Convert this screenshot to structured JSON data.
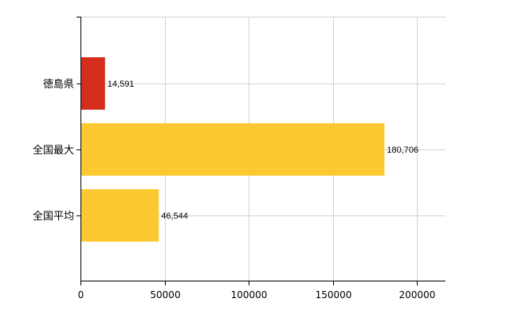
{
  "chart_data": {
    "type": "bar",
    "orientation": "horizontal",
    "categories": [
      "徳島県",
      "全国最大",
      "全国平均"
    ],
    "values": [
      14591,
      180706,
      46544
    ],
    "data_labels": [
      "14,591",
      "180,706",
      "46,544"
    ],
    "bar_colors": [
      "#d42d1c",
      "#fdc931",
      "#fdc931"
    ],
    "xlim": [
      0,
      217000
    ],
    "x_ticks": [
      0,
      50000,
      100000,
      150000,
      200000
    ],
    "x_tick_labels": [
      "0",
      "50000",
      "100000",
      "150000",
      "200000"
    ],
    "grid": true,
    "grid_color": "#d3d3d3",
    "axis_color": "#000000"
  }
}
